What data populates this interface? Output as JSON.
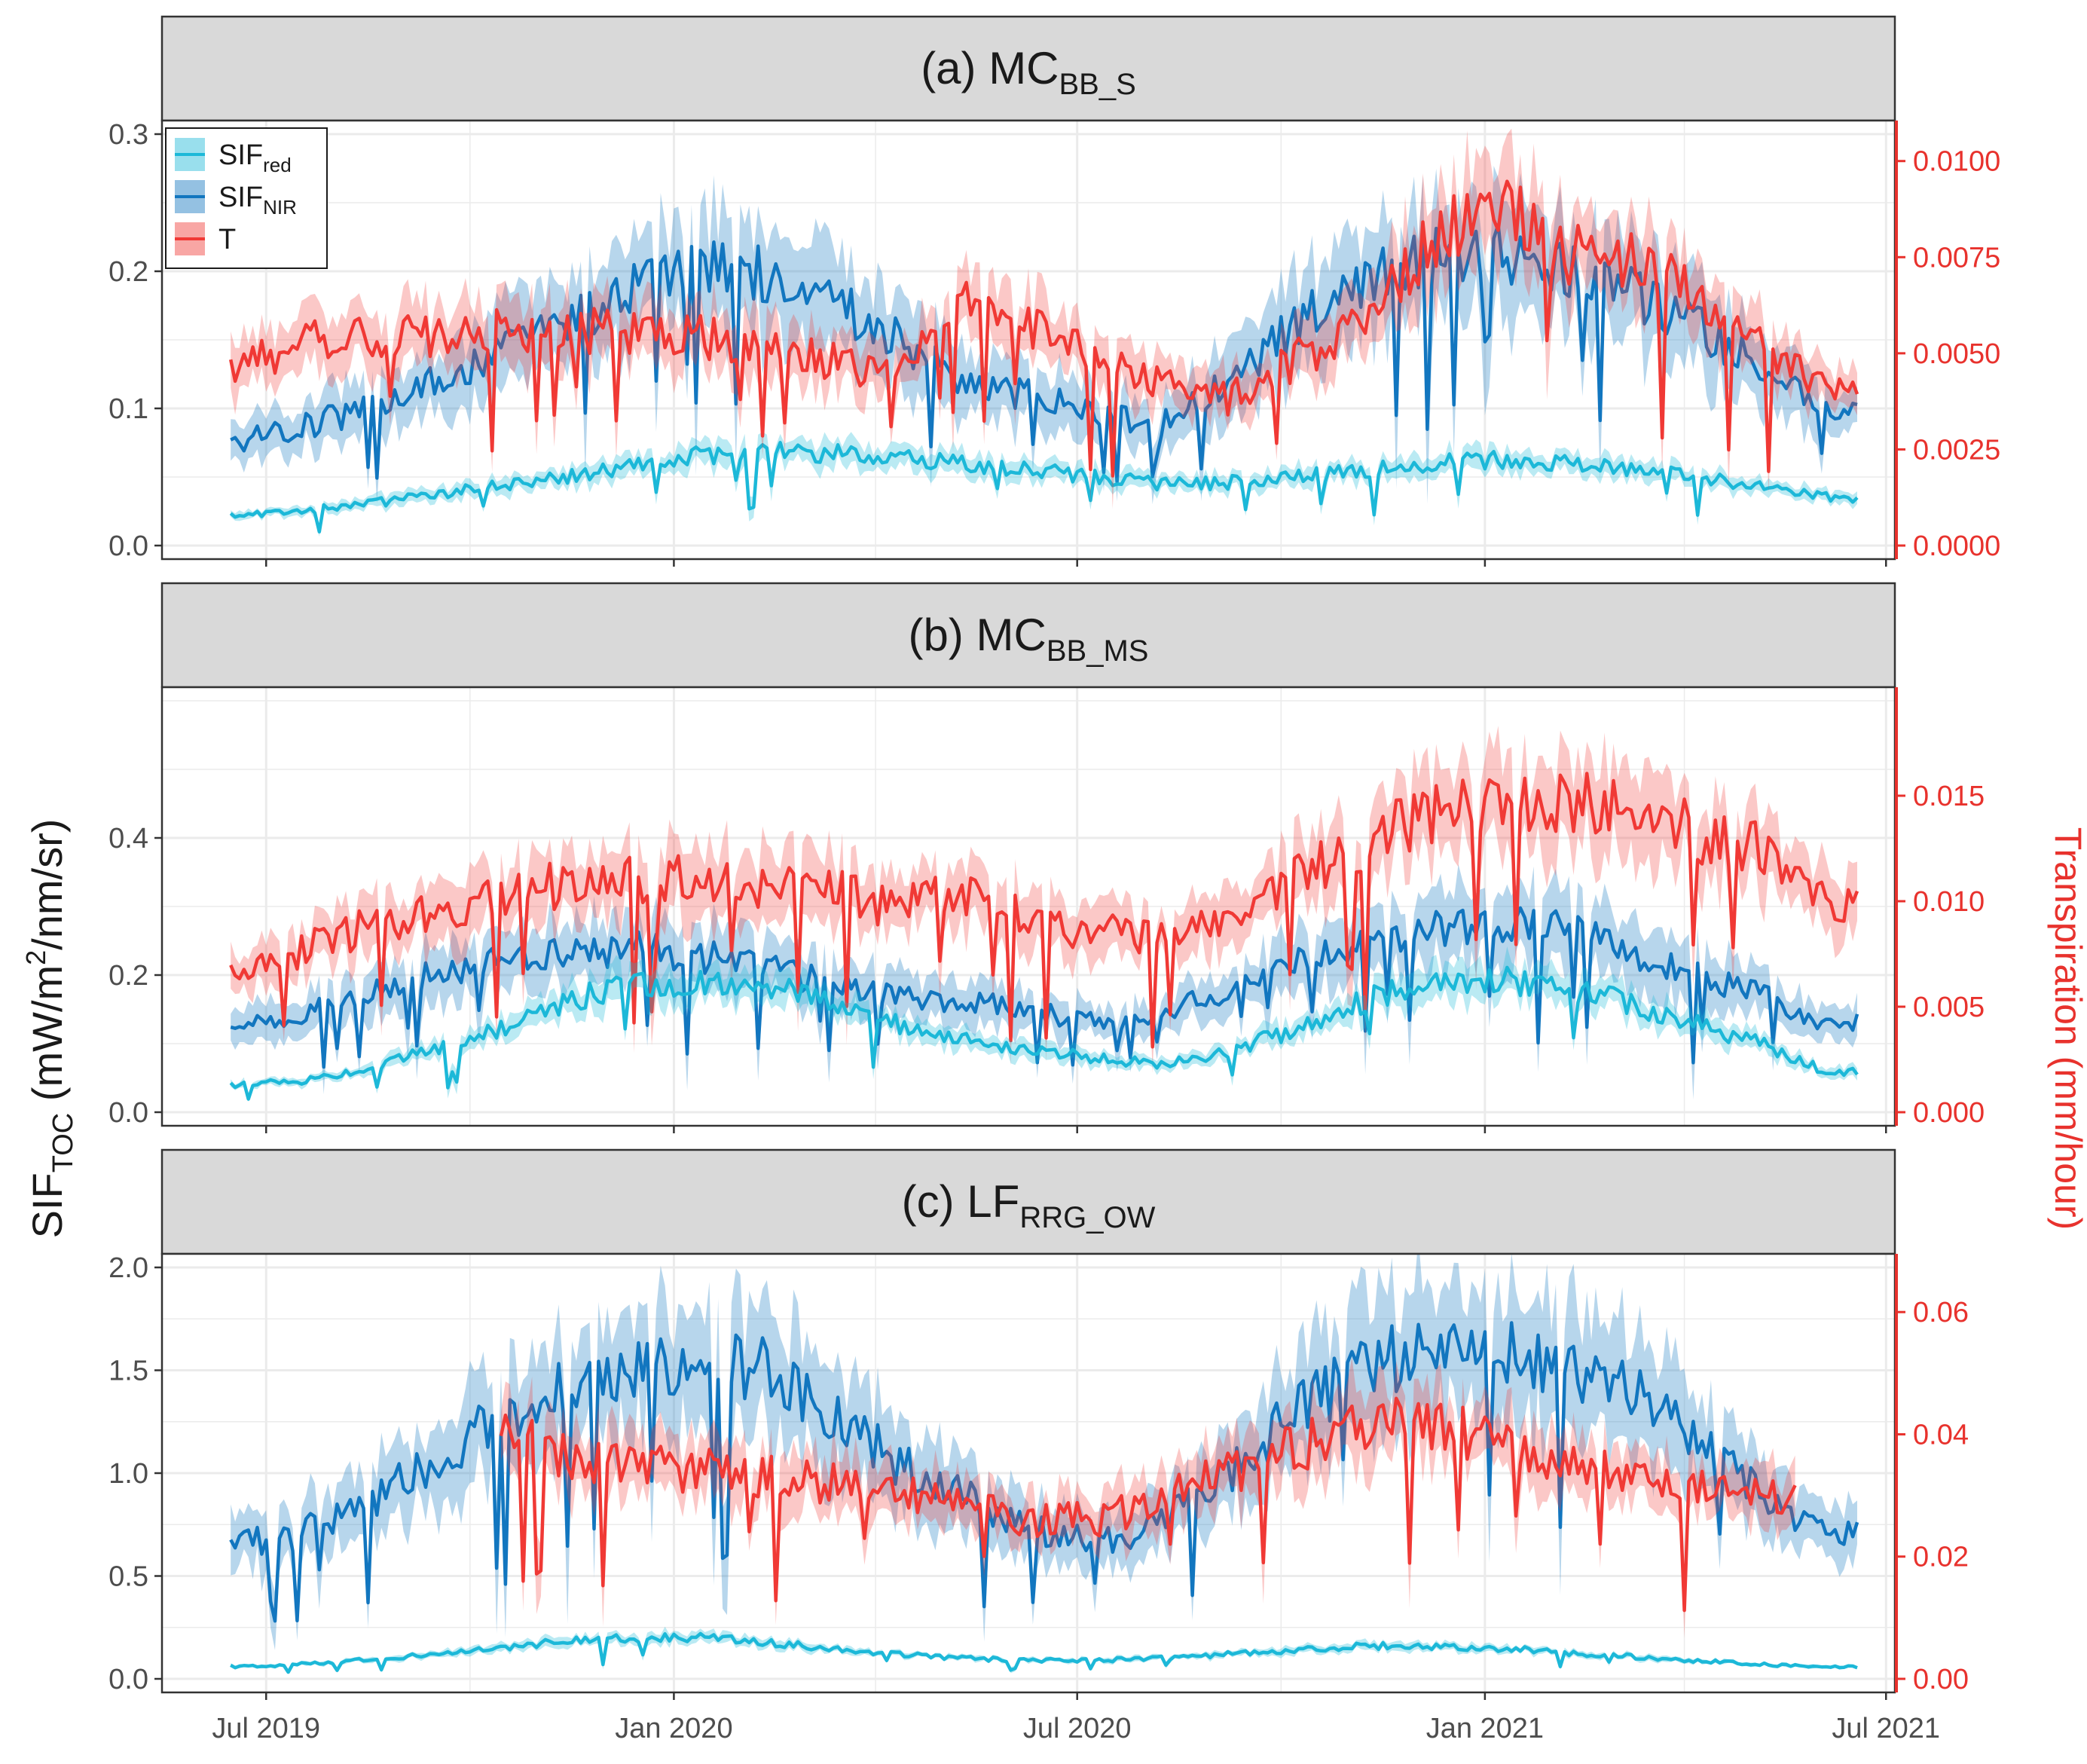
{
  "figure": {
    "left_axis_title": "SIF",
    "left_axis_title_sub": "TOC",
    "left_axis_title_rest": " (mW/m",
    "left_axis_title_sup": "2",
    "left_axis_title_end": "/nm/sr)",
    "right_axis_title": "Transpiration (mm/hour)",
    "x_ticks": [
      "Jul 2019",
      "Jan 2020",
      "Jul 2020",
      "Jan 2021",
      "Jul 2021"
    ],
    "legend": [
      {
        "base": "SIF",
        "sub": "red",
        "color": "#1cb8d8"
      },
      {
        "base": "SIF",
        "sub": "NIR",
        "color": "#1276bf"
      },
      {
        "base": "T",
        "sub": "",
        "color": "#f03935"
      }
    ]
  },
  "chart_data": [
    {
      "type": "line",
      "panel": "a",
      "title": "(a) MC",
      "title_sub": "BB_S",
      "x_range": [
        "2019-05-15",
        "2021-07-05"
      ],
      "start_date": "2019-06-15",
      "step_days": 30,
      "ylim_left": [
        0,
        0.3
      ],
      "yticks_left": [
        "0.0",
        "0.1",
        "0.2",
        "0.3"
      ],
      "ylim_right": [
        0,
        0.0107
      ],
      "yticks_right": [
        "0.0000",
        "0.0025",
        "0.0050",
        "0.0075",
        "0.0100"
      ],
      "series": [
        {
          "name": "SIF_red",
          "axis": "left",
          "start": "2019-06-15",
          "values": [
            0.022,
            0.025,
            0.03,
            0.036,
            0.044,
            0.05,
            0.058,
            0.065,
            0.068,
            0.068,
            0.065,
            0.06,
            0.055,
            0.05,
            0.045,
            0.046,
            0.05,
            0.055,
            0.06,
            0.062,
            0.06,
            0.055,
            0.05,
            0.043,
            0.035
          ]
        },
        {
          "name": "SIF_NIR",
          "axis": "left",
          "start": "2019-06-15",
          "values": [
            0.075,
            0.085,
            0.1,
            0.12,
            0.14,
            0.16,
            0.185,
            0.2,
            0.2,
            0.18,
            0.15,
            0.12,
            0.11,
            0.095,
            0.09,
            0.12,
            0.16,
            0.195,
            0.21,
            0.215,
            0.2,
            0.185,
            0.16,
            0.13,
            0.095
          ]
        },
        {
          "name": "T",
          "axis": "right",
          "start": "2019-06-15",
          "values": [
            0.0045,
            0.0052,
            0.0055,
            0.0054,
            0.0057,
            0.0056,
            0.0055,
            0.0054,
            0.0052,
            0.0048,
            0.0045,
            0.0062,
            0.0058,
            0.0048,
            0.0042,
            0.0038,
            0.0048,
            0.0058,
            0.0078,
            0.0092,
            0.0076,
            0.0075,
            0.0068,
            0.0052,
            0.004
          ]
        }
      ]
    },
    {
      "type": "line",
      "panel": "b",
      "title": "(b) MC",
      "title_sub": "BB_MS",
      "x_range": [
        "2019-05-15",
        "2021-07-05"
      ],
      "start_date": "2019-06-15",
      "step_days": 30,
      "ylim_left": [
        0,
        0.6
      ],
      "yticks_left": [
        "0.0",
        "0.2",
        "0.4"
      ],
      "ylim_right": [
        0,
        0.0195
      ],
      "yticks_right": [
        "0.000",
        "0.005",
        "0.010",
        "0.015"
      ],
      "series": [
        {
          "name": "SIF_red",
          "axis": "left",
          "start": "2019-06-15",
          "values": [
            0.04,
            0.045,
            0.06,
            0.09,
            0.12,
            0.16,
            0.185,
            0.19,
            0.185,
            0.16,
            0.13,
            0.11,
            0.09,
            0.08,
            0.07,
            0.09,
            0.12,
            0.16,
            0.19,
            0.195,
            0.18,
            0.16,
            0.13,
            0.1,
            0.06
          ]
        },
        {
          "name": "SIF_NIR",
          "axis": "left",
          "start": "2019-06-15",
          "values": [
            0.12,
            0.14,
            0.17,
            0.2,
            0.22,
            0.23,
            0.24,
            0.23,
            0.21,
            0.19,
            0.17,
            0.16,
            0.15,
            0.13,
            0.14,
            0.18,
            0.22,
            0.25,
            0.27,
            0.28,
            0.27,
            0.24,
            0.2,
            0.17,
            0.13
          ]
        },
        {
          "name": "T",
          "axis": "right",
          "start": "2019-06-15",
          "values": [
            0.0065,
            0.0075,
            0.0088,
            0.0095,
            0.0102,
            0.0108,
            0.011,
            0.0112,
            0.0108,
            0.0104,
            0.0098,
            0.0102,
            0.0092,
            0.0085,
            0.0082,
            0.0092,
            0.011,
            0.0128,
            0.014,
            0.0146,
            0.0148,
            0.0148,
            0.0132,
            0.0125,
            0.0098
          ]
        }
      ]
    },
    {
      "type": "line",
      "panel": "c",
      "title": "(c) LF",
      "title_sub": "RRG_OW",
      "x_range": [
        "2019-05-15",
        "2021-07-05"
      ],
      "start_date": "2019-06-15",
      "step_days": 30,
      "ylim_left": [
        0,
        2.0
      ],
      "yticks_left": [
        "0.0",
        "0.5",
        "1.0",
        "1.5",
        "2.0"
      ],
      "ylim_right": [
        0,
        0.0673
      ],
      "yticks_right": [
        "0.00",
        "0.02",
        "0.04",
        "0.06"
      ],
      "series": [
        {
          "name": "SIF_red",
          "axis": "left",
          "start": "2019-06-15",
          "values": [
            0.06,
            0.07,
            0.09,
            0.12,
            0.15,
            0.18,
            0.2,
            0.2,
            0.18,
            0.15,
            0.12,
            0.1,
            0.09,
            0.09,
            0.1,
            0.12,
            0.14,
            0.16,
            0.16,
            0.15,
            0.13,
            0.11,
            0.09,
            0.07,
            0.06
          ]
        },
        {
          "name": "SIF_NIR",
          "axis": "left",
          "start": "2019-06-15",
          "values": [
            0.65,
            0.7,
            0.85,
            1.05,
            1.25,
            1.4,
            1.5,
            1.55,
            1.5,
            1.3,
            1.05,
            0.9,
            0.75,
            0.65,
            0.75,
            1.0,
            1.3,
            1.5,
            1.6,
            1.6,
            1.55,
            1.4,
            1.15,
            0.9,
            0.7
          ]
        },
        {
          "name": "T",
          "axis": "right",
          "start": "2019-10-15",
          "values": [
            0.04,
            0.036,
            0.035,
            0.034,
            0.033,
            0.032,
            0.03,
            0.028,
            0.026,
            0.026,
            0.03,
            0.034,
            0.038,
            0.042,
            0.041,
            0.039,
            0.036,
            0.033,
            0.031,
            0.03
          ]
        }
      ]
    }
  ]
}
